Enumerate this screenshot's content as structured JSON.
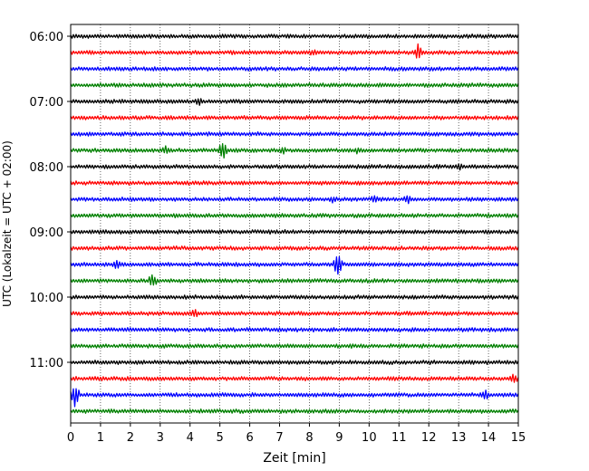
{
  "chart_data": {
    "type": "line",
    "xlabel": "Zeit  [min]",
    "ylabel": "UTC (Lokalzeit = UTC + 02:00)",
    "xlim": [
      0,
      15
    ],
    "x_ticks": [
      "0",
      "1",
      "2",
      "3",
      "4",
      "5",
      "6",
      "7",
      "8",
      "9",
      "10",
      "11",
      "12",
      "13",
      "14",
      "15"
    ],
    "y_ticks": [
      "06:00",
      "07:00",
      "08:00",
      "09:00",
      "10:00",
      "11:00"
    ],
    "grid": "vertical dotted lines at each minute",
    "row_interval_minutes": 15,
    "first_row": "06:00",
    "row_count": 24,
    "color_cycle": [
      "#000000",
      "#ff0000",
      "#0000ff",
      "#008000"
    ],
    "events": [
      {
        "row": 1,
        "x": 11.65,
        "amp": 9
      },
      {
        "row": 1,
        "x": 8.1,
        "amp": 3
      },
      {
        "row": 4,
        "x": 4.3,
        "amp": 5
      },
      {
        "row": 7,
        "x": 5.1,
        "amp": 9
      },
      {
        "row": 7,
        "x": 3.2,
        "amp": 4
      },
      {
        "row": 7,
        "x": 7.1,
        "amp": 4
      },
      {
        "row": 7,
        "x": 9.6,
        "amp": 3
      },
      {
        "row": 8,
        "x": 13.0,
        "amp": 3
      },
      {
        "row": 10,
        "x": 8.8,
        "amp": 3
      },
      {
        "row": 10,
        "x": 10.2,
        "amp": 4
      },
      {
        "row": 10,
        "x": 11.3,
        "amp": 4
      },
      {
        "row": 14,
        "x": 8.95,
        "amp": 12
      },
      {
        "row": 14,
        "x": 1.55,
        "amp": 4
      },
      {
        "row": 15,
        "x": 2.75,
        "amp": 9
      },
      {
        "row": 17,
        "x": 4.15,
        "amp": 4
      },
      {
        "row": 21,
        "x": 14.85,
        "amp": 5
      },
      {
        "row": 22,
        "x": 0.15,
        "amp": 14
      },
      {
        "row": 22,
        "x": 13.9,
        "amp": 4
      }
    ]
  }
}
